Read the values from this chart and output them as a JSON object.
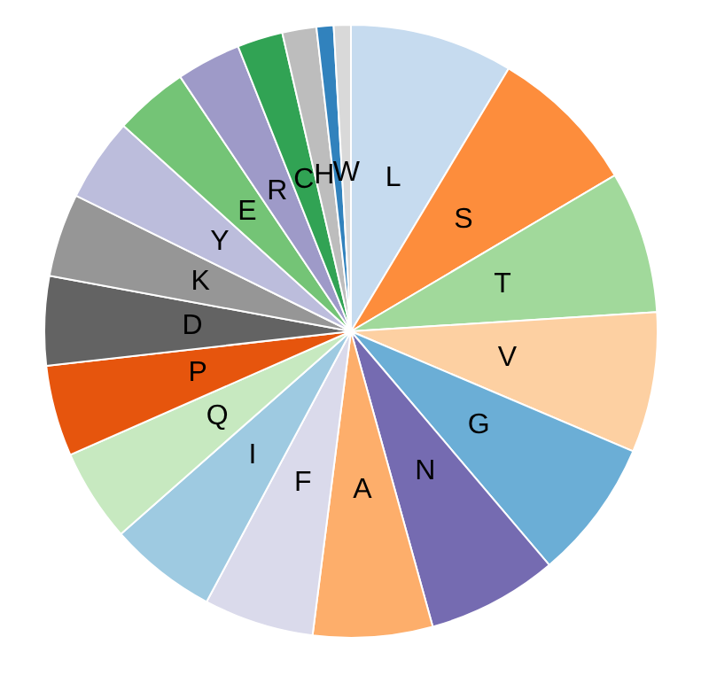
{
  "chart_data": {
    "type": "pie",
    "categories": [
      "L",
      "S",
      "T",
      "V",
      "G",
      "N",
      "A",
      "F",
      "I",
      "Q",
      "P",
      "D",
      "K",
      "Y",
      "E",
      "R",
      "C",
      "H",
      null,
      "W"
    ],
    "values": [
      8.6,
      7.9,
      7.5,
      7.4,
      7.4,
      6.9,
      6.3,
      5.8,
      5.7,
      4.9,
      4.8,
      4.7,
      4.4,
      4.4,
      3.9,
      3.4,
      2.4,
      1.8,
      0.9,
      0.9
    ],
    "colors": [
      "#c6dbef",
      "#fd8d3c",
      "#a1d99b",
      "#fdd0a2",
      "#6baed6",
      "#756bb1",
      "#fdae6b",
      "#dadaeb",
      "#9ecae1",
      "#c7e9c0",
      "#e6550d",
      "#636363",
      "#969696",
      "#bcbddc",
      "#74c476",
      "#9e9ac8",
      "#31a354",
      "#bdbdbd",
      "#3182bd",
      "#d9d9d9"
    ]
  }
}
